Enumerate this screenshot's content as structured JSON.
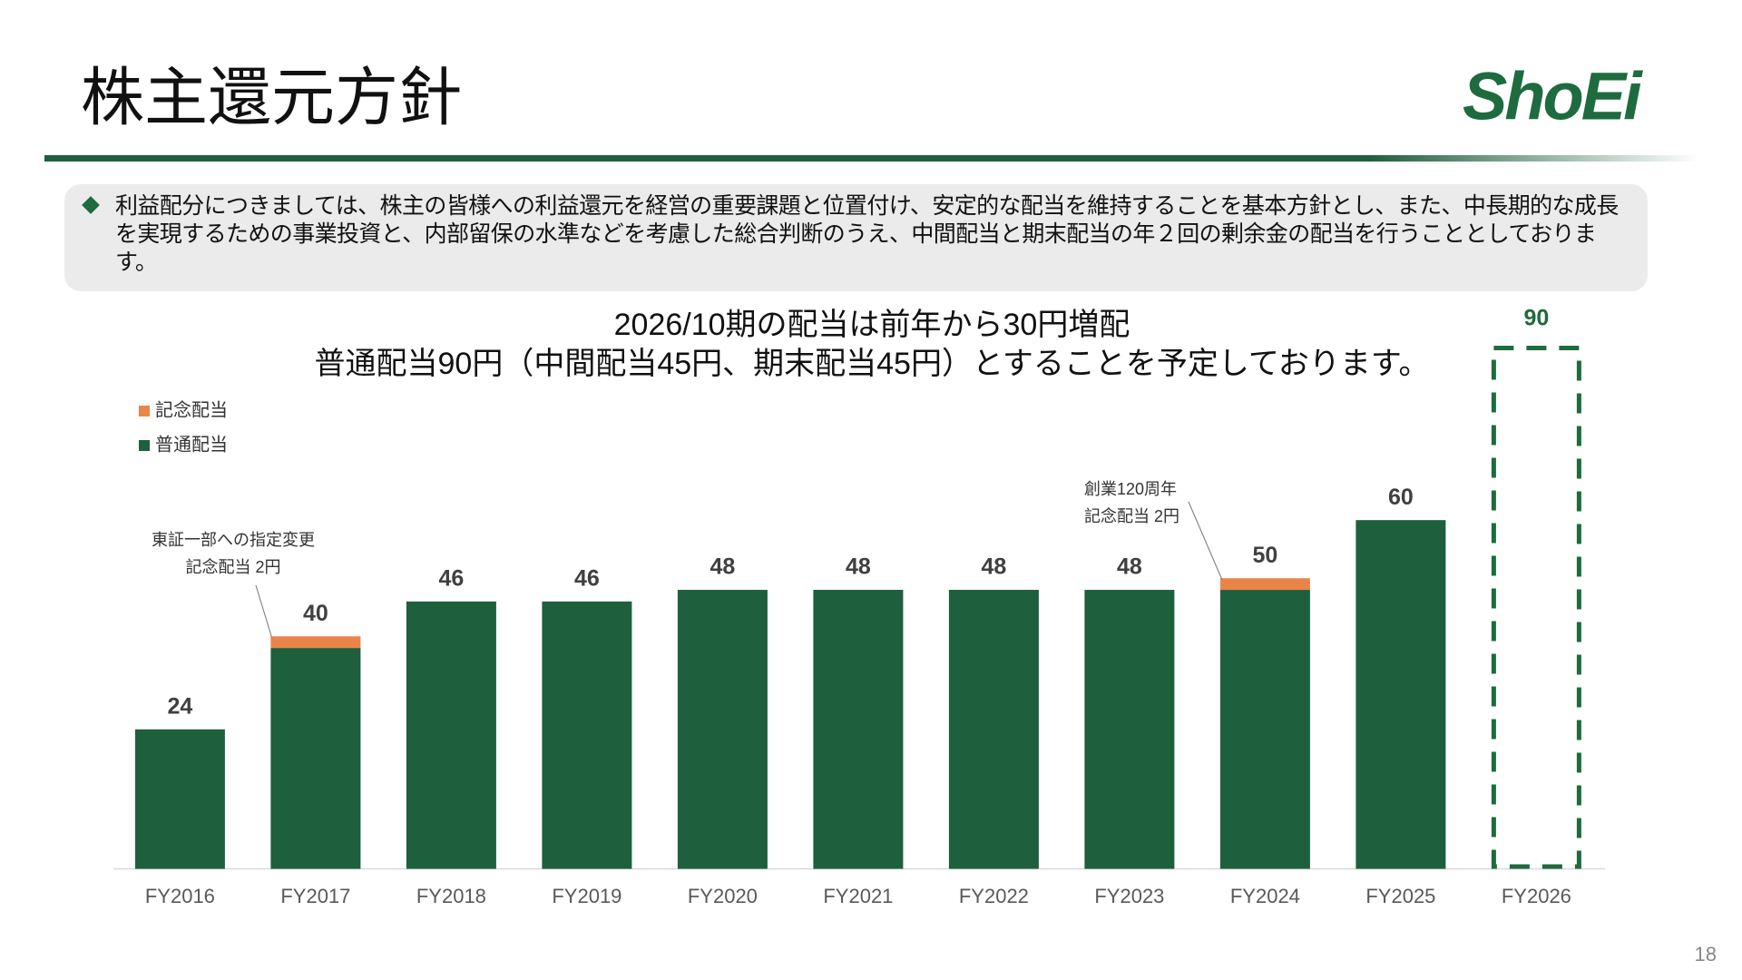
{
  "title": "株主還元方針",
  "logo": "ShoEi",
  "policy_text": "利益配分につきましては、株主の皆様への利益還元を経営の重要課題と位置付け、安定的な配当を維持することを基本方針とし、また、中長期的な成長を実現するための事業投資と、内部留保の水準などを考慮した総合判断のうえ、中間配当と期末配当の年２回の剰余金の配当を行うこととしております。",
  "page_number": "18",
  "chart_data": {
    "type": "stacked_bar",
    "subtitle": [
      "2026/10期の配当は前年から30円増配",
      "普通配当90円（中間配当45円、期末配当45円）とすることを予定しております。"
    ],
    "categories": [
      "FY2016",
      "FY2017",
      "FY2018",
      "FY2019",
      "FY2020",
      "FY2021",
      "FY2022",
      "FY2023",
      "FY2024",
      "FY2025",
      "FY2026"
    ],
    "series": [
      {
        "name": "普通配当",
        "color": "#1e5f3d",
        "values": [
          24,
          38,
          46,
          46,
          48,
          48,
          48,
          48,
          48,
          60,
          90
        ]
      },
      {
        "name": "記念配当",
        "color": "#ea8549",
        "values": [
          null,
          2,
          null,
          null,
          null,
          null,
          null,
          null,
          2,
          null,
          null
        ]
      }
    ],
    "totals": [
      24,
      40,
      46,
      46,
      48,
      48,
      48,
      48,
      50,
      60,
      90
    ],
    "bar_style": [
      "solid",
      "solid",
      "solid",
      "solid",
      "solid",
      "solid",
      "solid",
      "solid",
      "solid",
      "solid",
      "dashed"
    ],
    "highlight_color": "#1e6b3f",
    "annotations": [
      {
        "lines": [
          "東証一部への指定変更",
          "記念配当 2円"
        ]
      },
      {
        "lines": [
          "創業120周年",
          "記念配当 2円"
        ]
      }
    ],
    "ylim": [
      0,
      90
    ],
    "legend": "top-left"
  }
}
